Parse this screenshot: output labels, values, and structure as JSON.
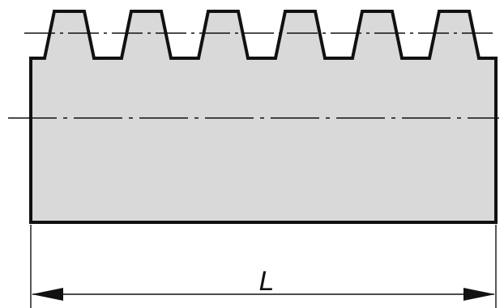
{
  "dimension": {
    "label": "L"
  },
  "colors": {
    "rack_fill": "#d9d9d9",
    "outline": "#111111",
    "background": "#ffffff"
  },
  "rack": {
    "teeth_count": 6
  }
}
